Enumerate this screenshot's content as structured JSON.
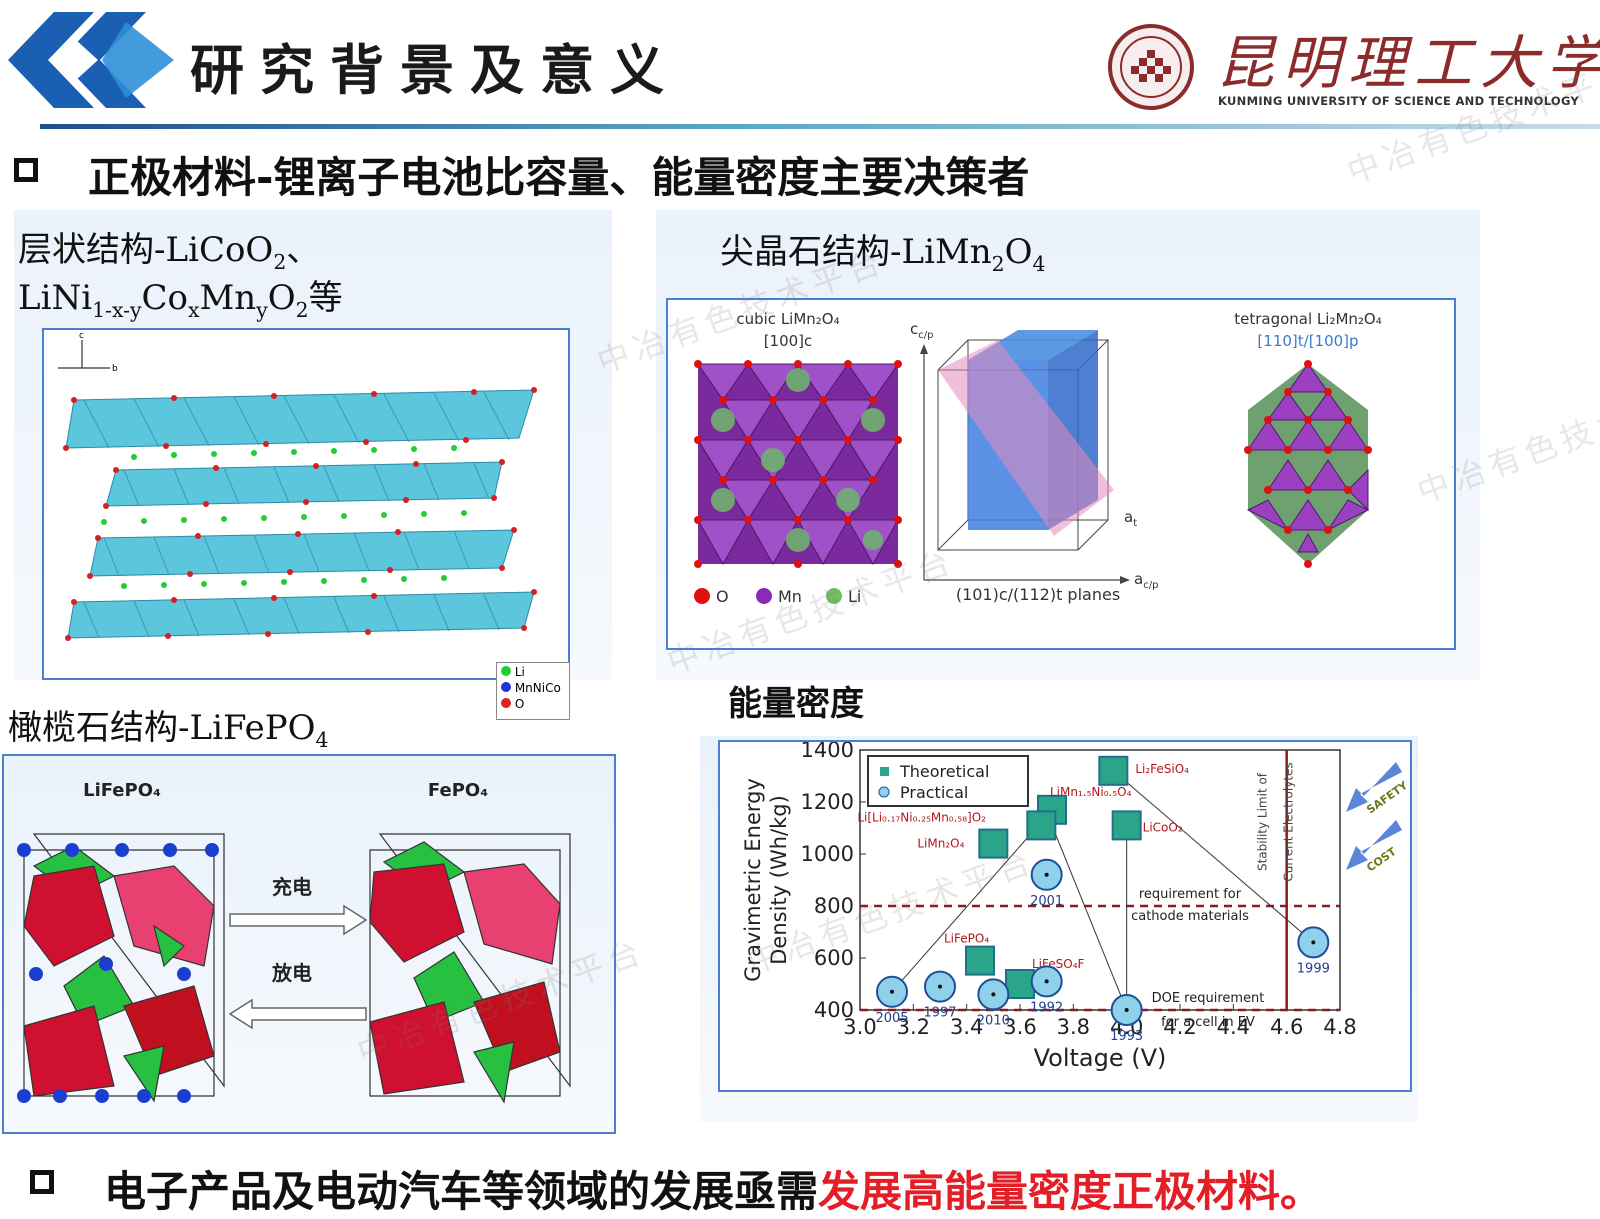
{
  "header": {
    "title": "研究背景及意义",
    "logo_name": "昆明理工大学",
    "logo_english": "KUNMING UNIVERSITY OF SCIENCE AND TECHNOLOGY"
  },
  "heading_top": "正极材料-锂离子电池比容量、能量密度主要决策者",
  "layered": {
    "label_line1": "层状结构-LiCoO",
    "label_line1_sub": "2",
    "label_line1_tail": "、",
    "label_line2_parts": [
      "LiNi",
      "1-x-y",
      "Co",
      "x",
      "Mn",
      "y",
      "O",
      "2",
      "等"
    ],
    "axes": [
      "c",
      "b"
    ],
    "legend": [
      "Li",
      "MnNiCo",
      "O"
    ]
  },
  "spinel": {
    "label": "尖晶石结构-LiMn",
    "label_sub1": "2",
    "label_mid": "O",
    "label_sub2": "4",
    "cubic_title": "cubic LiMn₂O₄",
    "cubic_dir": "[100]c",
    "tetra_title": "tetragonal Li₂Mn₂O₄",
    "tetra_dir": "[110]t/[100]p",
    "axis_c": "c",
    "axis_c_sub": "c/p",
    "axis_a": "a",
    "axis_a_sub": "c/p",
    "axis_b": "a",
    "axis_b_sub": "t",
    "planes": "(101)c/(112)t planes",
    "legend": [
      "O",
      "Mn",
      "Li"
    ]
  },
  "olivine": {
    "label": "橄榄石结构-LiFePO",
    "label_sub": "4",
    "left_title": "LiFePO₄",
    "right_title": "FePO₄",
    "charge": "充电",
    "discharge": "放电"
  },
  "energy": {
    "label": "能量密度"
  },
  "chart_data": {
    "type": "scatter",
    "xlabel": "Voltage (V)",
    "ylabel": "Gravimetric Energy Density (Wh/kg)",
    "xlim": [
      3.0,
      4.8
    ],
    "ylim": [
      400,
      1400
    ],
    "x_ticks": [
      "3.0",
      "3.2",
      "3.4",
      "3.6",
      "3.8",
      "4.0",
      "4.2",
      "4.4",
      "4.6",
      "4.8"
    ],
    "y_ticks": [
      "400",
      "600",
      "800",
      "1000",
      "1200",
      "1400"
    ],
    "legend": [
      "Theoretical",
      "Practical"
    ],
    "series": [
      {
        "name": "Theoretical",
        "points": [
          {
            "label": "Li₂FeSiO₄",
            "x": 3.95,
            "y": 1320
          },
          {
            "label": "LiMn₁.₅Ni₀.₅O₄",
            "x": 3.72,
            "y": 1170
          },
          {
            "label": "Li[Li₀.₁₇Ni₀.₂₅Mn₀.₅₈]O₂",
            "x": 3.68,
            "y": 1110
          },
          {
            "label": "LiCoO₂",
            "x": 4.0,
            "y": 1110
          },
          {
            "label": "LiMn₂O₄",
            "x": 3.5,
            "y": 1040
          },
          {
            "label": "LiFePO₄",
            "x": 3.45,
            "y": 590
          },
          {
            "label": "LiFeSO₄F",
            "x": 3.6,
            "y": 500
          }
        ]
      },
      {
        "name": "Practical",
        "points": [
          {
            "label": "2001",
            "x": 3.7,
            "y": 920
          },
          {
            "label": "2005",
            "x": 3.12,
            "y": 470
          },
          {
            "label": "1997",
            "x": 3.3,
            "y": 490
          },
          {
            "label": "2010",
            "x": 3.5,
            "y": 460
          },
          {
            "label": "1992",
            "x": 3.7,
            "y": 510
          },
          {
            "label": "1993",
            "x": 4.0,
            "y": 400
          },
          {
            "label": "1999",
            "x": 4.7,
            "y": 660
          }
        ]
      }
    ],
    "annotations": {
      "req_cathode": "requirement for cathode materials",
      "req_cathode_y": 800,
      "doe": "DOE requirement for a cell in EV",
      "doe_y": 400,
      "stability": "Stability Limit of Current Electrolytes",
      "stability_x": 4.6,
      "arrows": [
        "SAFETY",
        "COST"
      ]
    }
  },
  "heading_bottom_prefix": "电子产品及电动汽车等领域的发展亟需",
  "heading_bottom_emphasis": "发展高能量密度正极材料。",
  "watermark": "中冶有色技术平台"
}
